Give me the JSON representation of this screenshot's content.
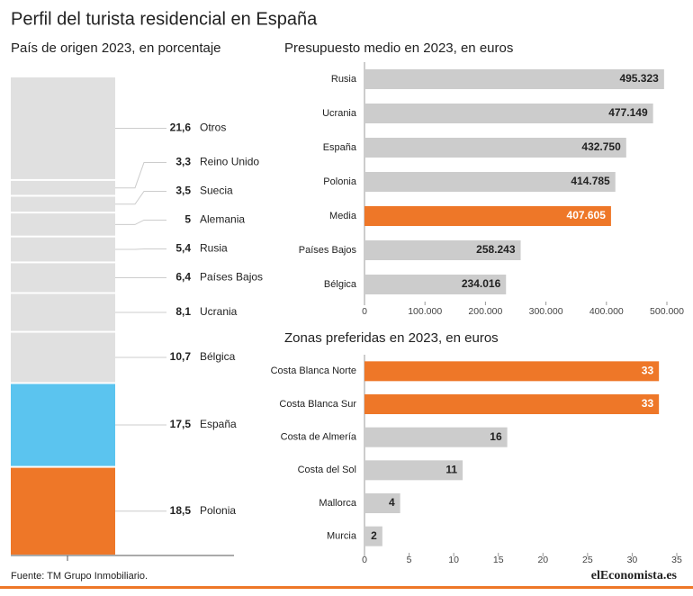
{
  "title": "Perfil del turista residencial en España",
  "source": "Fuente: TM Grupo Inmobiliario.",
  "logo": "elEconomista.es",
  "chart_data": [
    {
      "type": "stacked-column",
      "title": "País de origen 2023, en porcentaje",
      "categories": [
        "Otros",
        "Reino Unido",
        "Suecia",
        "Alemania",
        "Rusia",
        "Países Bajos",
        "Ucrania",
        "Bélgica",
        "España",
        "Polonia"
      ],
      "values": [
        21.6,
        3.3,
        3.5,
        5,
        5.4,
        6.4,
        8.1,
        10.7,
        17.5,
        18.5
      ],
      "value_labels": [
        "21,6",
        "3,3",
        "3,5",
        "5",
        "5,4",
        "6,4",
        "8,1",
        "10,7",
        "17,5",
        "18,5"
      ],
      "colors": [
        "#e0e0e0",
        "#e0e0e0",
        "#e0e0e0",
        "#e0e0e0",
        "#e0e0e0",
        "#e0e0e0",
        "#e0e0e0",
        "#e0e0e0",
        "#5bc4ef",
        "#ee7728"
      ]
    },
    {
      "type": "hbar",
      "title": "Presupuesto medio en 2023, en euros",
      "categories": [
        "Rusia",
        "Ucrania",
        "España",
        "Polonia",
        "Media",
        "Países Bajos",
        "Bélgica"
      ],
      "values": [
        495323,
        477149,
        432750,
        414785,
        407605,
        258243,
        234016
      ],
      "value_labels": [
        "495.323",
        "477.149",
        "432.750",
        "414.785",
        "407.605",
        "258.243",
        "234.016"
      ],
      "colors": [
        "#cccccc",
        "#cccccc",
        "#cccccc",
        "#cccccc",
        "#ee7728",
        "#cccccc",
        "#cccccc"
      ],
      "xlim": [
        0,
        500000
      ],
      "xticks": [
        0,
        {
          "value": 100000,
          "label": "100.000"
        },
        {
          "value": 200000,
          "label": "200.000"
        },
        {
          "value": 300000,
          "label": "300.000"
        },
        {
          "value": 400000,
          "label": "400.000"
        },
        {
          "value": 500000,
          "label": "500.000"
        }
      ]
    },
    {
      "type": "hbar",
      "title": "Zonas preferidas en 2023, en euros",
      "categories": [
        "Costa Blanca Norte",
        "Costa Blanca Sur",
        "Costa de Almería",
        "Costa del Sol",
        "Mallorca",
        "Murcia"
      ],
      "values": [
        33,
        33,
        16,
        11,
        4,
        2
      ],
      "colors": [
        "#ee7728",
        "#ee7728",
        "#cccccc",
        "#cccccc",
        "#cccccc",
        "#cccccc"
      ],
      "xlim": [
        0,
        35
      ],
      "xticks": [
        0,
        5,
        10,
        15,
        20,
        25,
        30,
        35
      ]
    }
  ]
}
